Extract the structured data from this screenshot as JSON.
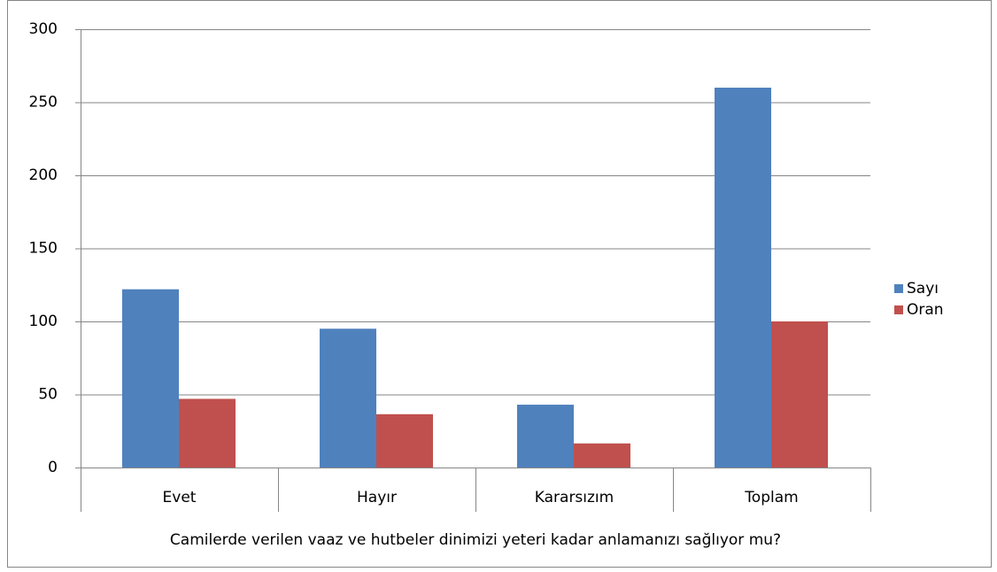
{
  "chart_data": {
    "type": "bar",
    "x_label": "Camilerde verilen vaaz ve hutbeler dinimizi yeteri kadar anlamanızı sağlıyor mu?",
    "categories": [
      "Evet",
      "Hayır",
      "Kararsızım",
      "Toplam"
    ],
    "series": [
      {
        "name": "Sayı",
        "color": "#4f81bd",
        "values": [
          122,
          95,
          43,
          260
        ]
      },
      {
        "name": "Oran",
        "color": "#c0504d",
        "values": [
          47,
          36.5,
          16.5,
          100
        ]
      }
    ],
    "ylim": [
      0,
      300
    ],
    "yticks": [
      0,
      50,
      100,
      150,
      200,
      250,
      300
    ],
    "grid": true,
    "legend": "right"
  }
}
